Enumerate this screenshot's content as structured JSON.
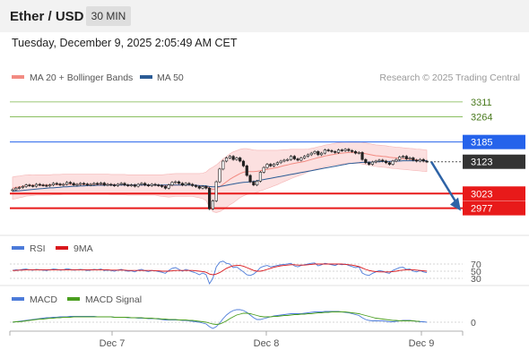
{
  "header": {
    "title": "Ether / USD",
    "timeframe": "30 MIN",
    "datetime": "Tuesday, December 9, 2025 2:05:49 AM CET"
  },
  "legend": {
    "ma20_label": "MA 20 + Bollinger Bands",
    "ma50_label": "MA 50",
    "ma20_color": "#f28b82",
    "ma50_color": "#2b5b95",
    "credit": "Research © 2025 Trading Central"
  },
  "chart_data": [
    {
      "type": "candlestick",
      "x_labels": [
        "Dec 7",
        "Dec 8",
        "Dec 9"
      ],
      "price_levels": [
        {
          "label": "3311",
          "value": 3311,
          "kind": "resistance",
          "color": "#7ab648"
        },
        {
          "label": "3264",
          "value": 3264,
          "kind": "resistance",
          "color": "#7ab648"
        },
        {
          "label": "3185",
          "value": 3185,
          "kind": "resistance",
          "color": "#2563eb"
        },
        {
          "label": "3123",
          "value": 3123,
          "kind": "last",
          "color": "#333333"
        },
        {
          "label": "3023",
          "value": 3023,
          "kind": "support",
          "color": "#e81a1a"
        },
        {
          "label": "2977",
          "value": 2977,
          "kind": "support",
          "color": "#e81a1a"
        }
      ],
      "ylim": [
        2900,
        3350
      ],
      "closes": [
        3035,
        3040,
        3042,
        3045,
        3050,
        3048,
        3046,
        3052,
        3050,
        3049,
        3047,
        3050,
        3055,
        3053,
        3050,
        3052,
        3058,
        3055,
        3050,
        3052,
        3055,
        3053,
        3050,
        3052,
        3055,
        3053,
        3056,
        3050,
        3052,
        3050,
        3048,
        3052,
        3055,
        3050,
        3048,
        3050,
        3046,
        3052,
        3055,
        3050,
        3048,
        3052,
        3050,
        3048,
        3045,
        3040,
        3050,
        3058,
        3060,
        3055,
        3050,
        3055,
        3052,
        3048,
        3045,
        3040,
        3045,
        3040,
        2975,
        3000,
        3060,
        3100,
        3125,
        3135,
        3140,
        3130,
        3135,
        3125,
        3110,
        3080,
        3060,
        3050,
        3062,
        3090,
        3105,
        3115,
        3110,
        3115,
        3120,
        3125,
        3128,
        3130,
        3140,
        3132,
        3128,
        3135,
        3140,
        3145,
        3150,
        3155,
        3145,
        3150,
        3160,
        3158,
        3155,
        3152,
        3160,
        3158,
        3162,
        3158,
        3155,
        3150,
        3152,
        3130,
        3120,
        3115,
        3122,
        3125,
        3128,
        3125,
        3120,
        3115,
        3125,
        3130,
        3138,
        3140,
        3132,
        3135,
        3128,
        3125,
        3130,
        3125,
        3123
      ],
      "ma20": [
        3040,
        3042,
        3044,
        3046,
        3048,
        3049,
        3049,
        3050,
        3050,
        3050,
        3050,
        3050,
        3051,
        3051,
        3051,
        3052,
        3052,
        3052,
        3052,
        3052,
        3052,
        3052,
        3052,
        3052,
        3052,
        3052,
        3052,
        3052,
        3052,
        3051,
        3051,
        3051,
        3051,
        3051,
        3050,
        3050,
        3050,
        3050,
        3050,
        3050,
        3050,
        3050,
        3050,
        3049,
        3048,
        3048,
        3048,
        3049,
        3050,
        3050,
        3050,
        3050,
        3050,
        3050,
        3049,
        3048,
        3047,
        3046,
        3040,
        3036,
        3038,
        3044,
        3052,
        3060,
        3068,
        3074,
        3080,
        3086,
        3090,
        3092,
        3092,
        3092,
        3093,
        3095,
        3097,
        3099,
        3101,
        3103,
        3105,
        3108,
        3111,
        3113,
        3116,
        3118,
        3120,
        3122,
        3124,
        3127,
        3130,
        3133,
        3136,
        3138,
        3141,
        3143,
        3145,
        3147,
        3149,
        3150,
        3151,
        3152,
        3152,
        3152,
        3152,
        3150,
        3148,
        3146,
        3144,
        3142,
        3141,
        3140,
        3139,
        3137,
        3136,
        3135,
        3134,
        3133,
        3132,
        3131,
        3130,
        3129,
        3128,
        3127,
        3126
      ],
      "ma50": [
        3030,
        3031,
        3032,
        3033,
        3034,
        3035,
        3036,
        3037,
        3038,
        3039,
        3040,
        3041,
        3041,
        3042,
        3043,
        3044,
        3044,
        3045,
        3046,
        3046,
        3047,
        3047,
        3048,
        3048,
        3048,
        3049,
        3049,
        3049,
        3050,
        3050,
        3050,
        3050,
        3050,
        3050,
        3050,
        3050,
        3050,
        3050,
        3050,
        3050,
        3050,
        3050,
        3050,
        3050,
        3050,
        3050,
        3050,
        3050,
        3050,
        3050,
        3050,
        3050,
        3050,
        3049,
        3049,
        3048,
        3048,
        3047,
        3045,
        3044,
        3044,
        3045,
        3047,
        3049,
        3051,
        3053,
        3055,
        3057,
        3058,
        3059,
        3060,
        3061,
        3063,
        3065,
        3067,
        3069,
        3071,
        3073,
        3075,
        3077,
        3079,
        3081,
        3083,
        3085,
        3087,
        3089,
        3091,
        3093,
        3095,
        3097,
        3099,
        3101,
        3103,
        3105,
        3107,
        3109,
        3111,
        3113,
        3115,
        3117,
        3118,
        3119,
        3120,
        3121,
        3121,
        3122,
        3122,
        3123,
        3123,
        3124,
        3124,
        3124,
        3125,
        3125,
        3125,
        3126,
        3126,
        3126,
        3126,
        3126,
        3126,
        3126,
        3126
      ],
      "bb_width": [
        35,
        35,
        34,
        34,
        33,
        33,
        32,
        32,
        32,
        32,
        32,
        32,
        32,
        32,
        32,
        32,
        32,
        32,
        32,
        32,
        32,
        32,
        32,
        32,
        32,
        32,
        32,
        32,
        32,
        32,
        32,
        32,
        32,
        32,
        32,
        32,
        32,
        32,
        32,
        32,
        32,
        32,
        32,
        33,
        34,
        35,
        36,
        36,
        36,
        36,
        36,
        36,
        36,
        36,
        37,
        38,
        40,
        45,
        60,
        70,
        75,
        78,
        80,
        80,
        80,
        80,
        78,
        76,
        74,
        72,
        70,
        68,
        66,
        64,
        62,
        60,
        58,
        56,
        54,
        52,
        50,
        48,
        46,
        44,
        42,
        40,
        38,
        36,
        35,
        34,
        34,
        34,
        34,
        34,
        34,
        34,
        34,
        34,
        34,
        34,
        34,
        34,
        34,
        34,
        34,
        34,
        34,
        34,
        34,
        34,
        34,
        34,
        34,
        34,
        34,
        34,
        34,
        34,
        34,
        34,
        34,
        34,
        34
      ],
      "forecast_target": 2977
    },
    {
      "type": "line",
      "legend": [
        "RSI",
        "9MA"
      ],
      "levels": [
        {
          "label": "70",
          "value": 70
        },
        {
          "label": "50",
          "value": 50
        },
        {
          "label": "30",
          "value": 30
        }
      ],
      "series": [
        {
          "name": "RSI",
          "color": "#4c7bd9",
          "values": [
            52,
            54,
            53,
            55,
            56,
            54,
            53,
            55,
            54,
            53,
            52,
            54,
            56,
            55,
            53,
            54,
            57,
            55,
            53,
            54,
            55,
            54,
            52,
            53,
            55,
            54,
            56,
            52,
            53,
            52,
            50,
            53,
            55,
            52,
            50,
            51,
            48,
            53,
            55,
            51,
            49,
            52,
            51,
            49,
            47,
            44,
            52,
            58,
            60,
            55,
            50,
            55,
            52,
            48,
            45,
            40,
            45,
            40,
            15,
            30,
            62,
            75,
            78,
            72,
            70,
            60,
            62,
            55,
            48,
            40,
            38,
            42,
            50,
            60,
            64,
            66,
            62,
            64,
            66,
            68,
            69,
            70,
            72,
            65,
            62,
            66,
            68,
            70,
            72,
            73,
            65,
            68,
            72,
            70,
            68,
            66,
            70,
            68,
            70,
            66,
            63,
            60,
            62,
            45,
            40,
            38,
            44,
            48,
            52,
            50,
            46,
            44,
            52,
            56,
            60,
            61,
            55,
            56,
            50,
            48,
            52,
            48,
            46
          ]
        },
        {
          "name": "9MA",
          "color": "#d9171c",
          "values": [
            52,
            52,
            53,
            53,
            54,
            54,
            54,
            54,
            54,
            54,
            54,
            54,
            54,
            54,
            54,
            54,
            54,
            54,
            54,
            54,
            54,
            54,
            54,
            54,
            54,
            54,
            54,
            54,
            54,
            53,
            53,
            53,
            53,
            53,
            52,
            52,
            52,
            52,
            52,
            52,
            52,
            52,
            51,
            51,
            50,
            50,
            50,
            51,
            52,
            52,
            52,
            52,
            52,
            52,
            51,
            50,
            49,
            47,
            42,
            40,
            42,
            46,
            52,
            58,
            62,
            65,
            66,
            66,
            64,
            60,
            56,
            52,
            50,
            50,
            52,
            55,
            58,
            61,
            63,
            65,
            66,
            67,
            68,
            68,
            67,
            67,
            67,
            68,
            69,
            70,
            70,
            70,
            70,
            70,
            70,
            70,
            70,
            70,
            69,
            68,
            67,
            65,
            63,
            59,
            55,
            52,
            50,
            49,
            48,
            48,
            48,
            48,
            49,
            50,
            52,
            53,
            54,
            54,
            54,
            53,
            52,
            51,
            50
          ]
        }
      ]
    },
    {
      "type": "line",
      "legend": [
        "MACD",
        "MACD Signal"
      ],
      "levels": [
        {
          "label": "0",
          "value": 0
        }
      ],
      "series": [
        {
          "name": "MACD",
          "color": "#4c7bd9",
          "values": [
            0,
            1,
            2,
            3,
            4,
            5,
            6,
            7,
            8,
            9,
            10,
            10,
            11,
            11,
            12,
            12,
            12,
            13,
            13,
            13,
            13,
            13,
            13,
            13,
            13,
            12,
            12,
            12,
            12,
            12,
            11,
            11,
            11,
            11,
            10,
            10,
            10,
            9,
            9,
            9,
            8,
            8,
            8,
            7,
            6,
            5,
            5,
            5,
            5,
            5,
            4,
            4,
            3,
            2,
            1,
            0,
            -2,
            -4,
            -10,
            -14,
            -10,
            -2,
            8,
            16,
            22,
            26,
            28,
            28,
            26,
            22,
            16,
            10,
            6,
            6,
            8,
            10,
            12,
            14,
            15,
            16,
            17,
            18,
            19,
            19,
            19,
            19,
            20,
            21,
            22,
            23,
            23,
            23,
            24,
            24,
            24,
            24,
            24,
            23,
            22,
            21,
            19,
            17,
            15,
            10,
            6,
            4,
            3,
            3,
            3,
            3,
            2,
            1,
            1,
            2,
            3,
            4,
            4,
            4,
            3,
            2,
            1,
            1,
            0
          ]
        },
        {
          "name": "MACD Signal",
          "color": "#4a9e1f",
          "values": [
            0,
            1,
            1,
            2,
            3,
            4,
            5,
            6,
            7,
            7,
            8,
            9,
            9,
            10,
            10,
            11,
            11,
            11,
            12,
            12,
            12,
            12,
            12,
            12,
            12,
            12,
            12,
            12,
            12,
            12,
            11,
            11,
            11,
            11,
            11,
            10,
            10,
            10,
            10,
            9,
            9,
            9,
            8,
            8,
            7,
            7,
            6,
            6,
            6,
            5,
            5,
            5,
            4,
            4,
            3,
            2,
            1,
            0,
            -2,
            -4,
            -5,
            -4,
            -1,
            3,
            8,
            12,
            16,
            18,
            20,
            20,
            19,
            17,
            15,
            13,
            12,
            12,
            12,
            13,
            13,
            14,
            15,
            15,
            16,
            17,
            17,
            18,
            18,
            19,
            19,
            20,
            21,
            21,
            22,
            22,
            23,
            23,
            23,
            23,
            23,
            22,
            21,
            20,
            19,
            17,
            15,
            13,
            11,
            9,
            8,
            7,
            6,
            5,
            4,
            4,
            3,
            3,
            3,
            3,
            3,
            2,
            2
          ]
        }
      ]
    }
  ],
  "rsi_legend": {
    "rsi_label": "RSI",
    "ma_label": "9MA",
    "rsi_color": "#4c7bd9",
    "ma_color": "#d9171c"
  },
  "macd_legend": {
    "macd_label": "MACD",
    "signal_label": "MACD Signal",
    "macd_color": "#4c7bd9",
    "signal_color": "#4a9e1f"
  }
}
